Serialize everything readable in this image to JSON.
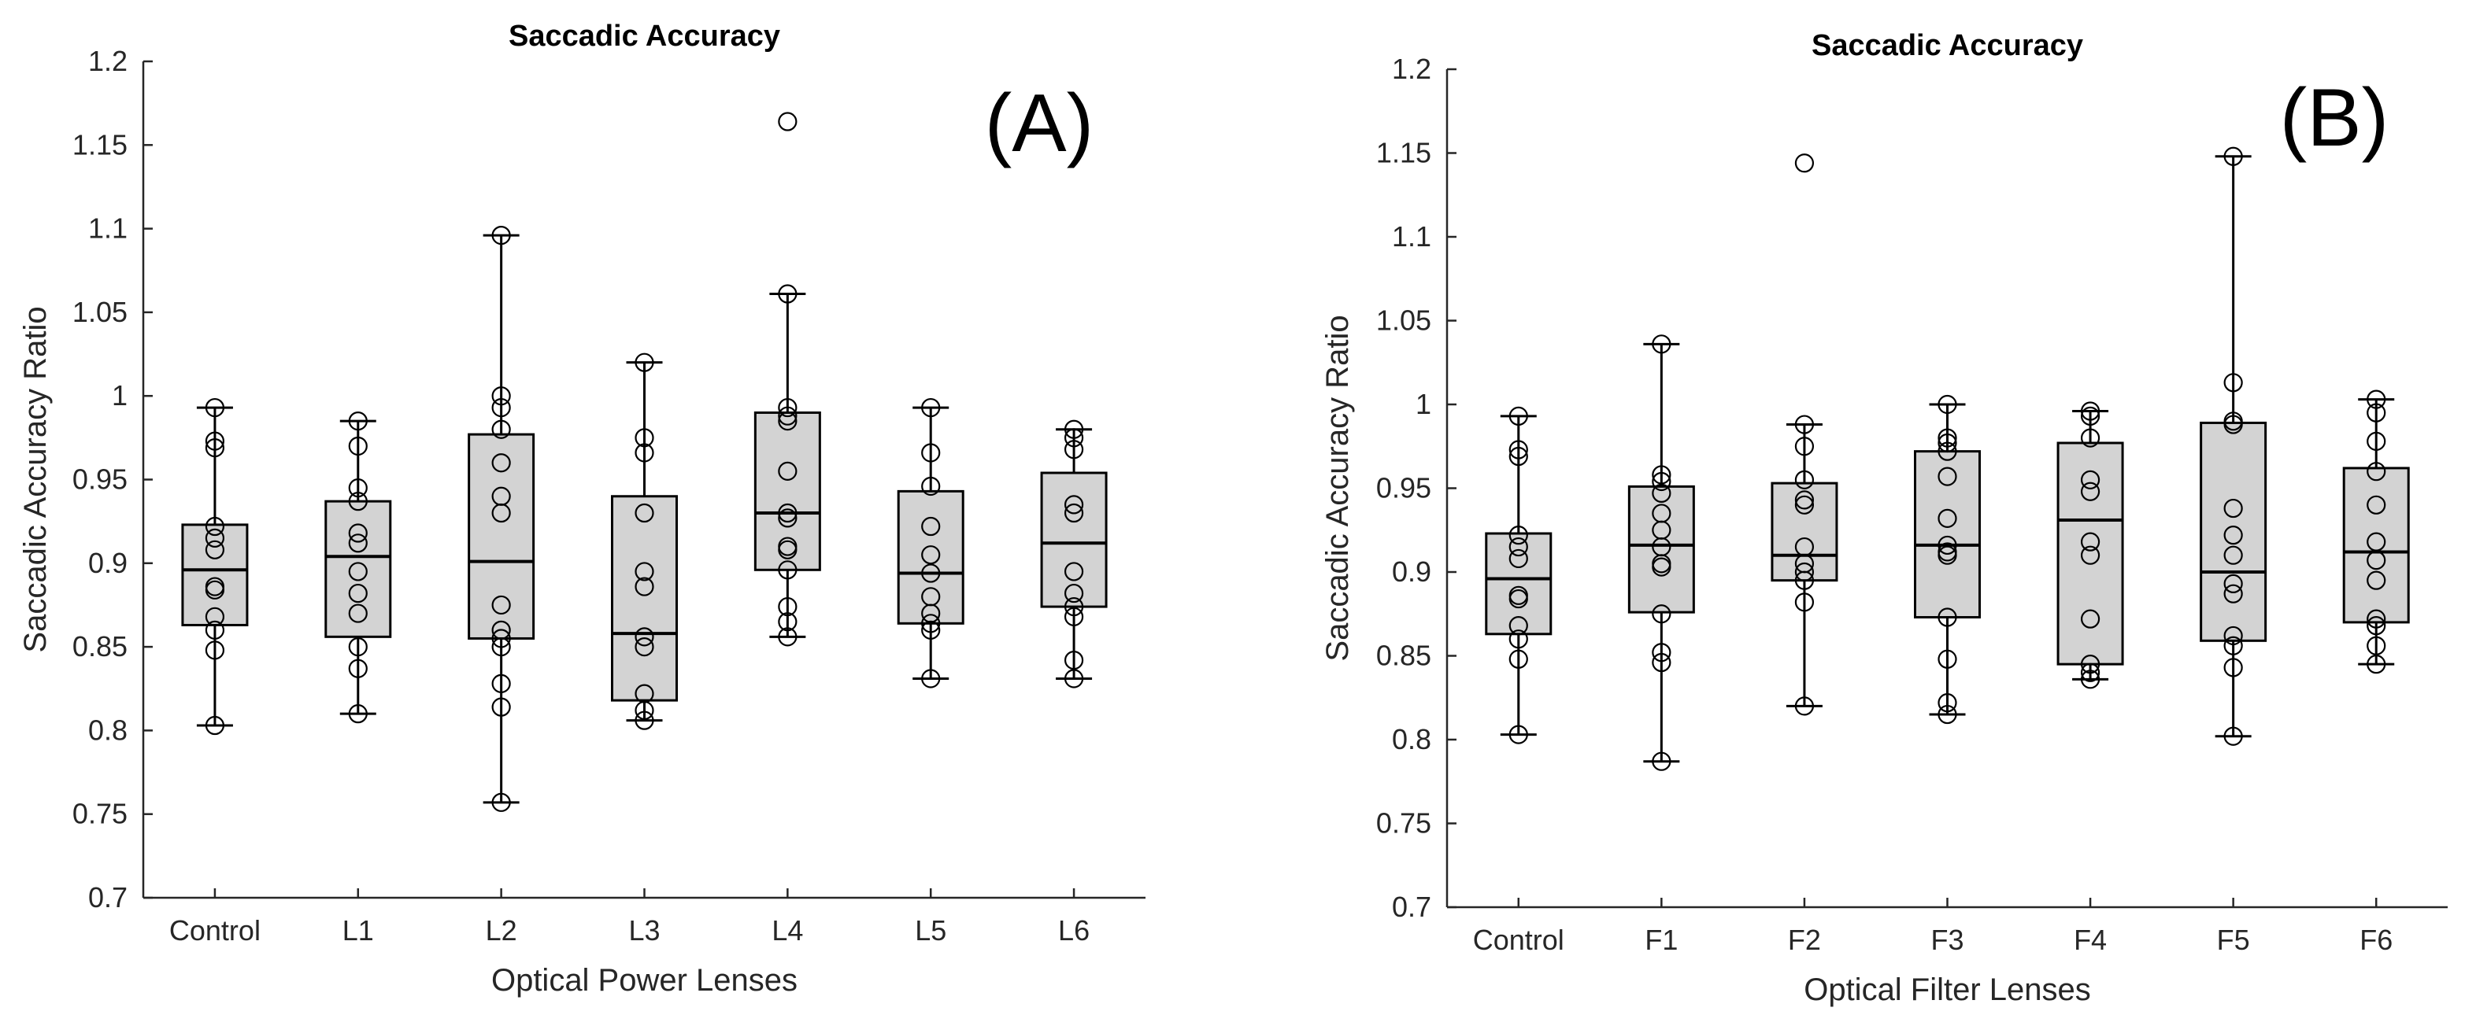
{
  "chart_data": [
    {
      "type": "box",
      "panel_label": "(A)",
      "title": "Saccadic Accuracy",
      "xlabel": "Optical Power Lenses",
      "ylabel": "Saccadic Accuracy Ratio",
      "ylim": [
        0.7,
        1.2
      ],
      "yticks": [
        "0.7",
        "0.75",
        "0.8",
        "0.85",
        "0.9",
        "0.95",
        "1",
        "1.05",
        "1.1",
        "1.15",
        "1.2"
      ],
      "categories": [
        "Control",
        "L1",
        "L2",
        "L3",
        "L4",
        "L5",
        "L6"
      ],
      "boxes": [
        {
          "whisker_low": 0.803,
          "q1": 0.863,
          "median": 0.896,
          "q3": 0.923,
          "whisker_high": 0.993,
          "outliers": []
        },
        {
          "whisker_low": 0.81,
          "q1": 0.856,
          "median": 0.904,
          "q3": 0.937,
          "whisker_high": 0.985,
          "outliers": []
        },
        {
          "whisker_low": 0.757,
          "q1": 0.855,
          "median": 0.901,
          "q3": 0.977,
          "whisker_high": 1.096,
          "outliers": []
        },
        {
          "whisker_low": 0.806,
          "q1": 0.818,
          "median": 0.858,
          "q3": 0.94,
          "whisker_high": 1.02,
          "outliers": []
        },
        {
          "whisker_low": 0.856,
          "q1": 0.896,
          "median": 0.93,
          "q3": 0.99,
          "whisker_high": 1.061,
          "outliers": [
            1.164
          ]
        },
        {
          "whisker_low": 0.831,
          "q1": 0.864,
          "median": 0.894,
          "q3": 0.943,
          "whisker_high": 0.993,
          "outliers": []
        },
        {
          "whisker_low": 0.831,
          "q1": 0.874,
          "median": 0.912,
          "q3": 0.954,
          "whisker_high": 0.98,
          "outliers": []
        }
      ],
      "points": [
        [
          0.993,
          0.973,
          0.969,
          0.922,
          0.915,
          0.908,
          0.886,
          0.884,
          0.868,
          0.86,
          0.848,
          0.803
        ],
        [
          0.985,
          0.97,
          0.945,
          0.937,
          0.918,
          0.912,
          0.895,
          0.882,
          0.87,
          0.85,
          0.837,
          0.81
        ],
        [
          1.096,
          1.0,
          0.993,
          0.98,
          0.96,
          0.94,
          0.93,
          0.875,
          0.86,
          0.855,
          0.85,
          0.828,
          0.814,
          0.757
        ],
        [
          1.02,
          0.975,
          0.966,
          0.93,
          0.895,
          0.886,
          0.856,
          0.85,
          0.822,
          0.812,
          0.806
        ],
        [
          1.164,
          1.061,
          0.993,
          0.988,
          0.985,
          0.955,
          0.93,
          0.927,
          0.91,
          0.908,
          0.896,
          0.874,
          0.865,
          0.856
        ],
        [
          0.993,
          0.966,
          0.946,
          0.922,
          0.905,
          0.894,
          0.88,
          0.87,
          0.864,
          0.86,
          0.831
        ],
        [
          0.98,
          0.975,
          0.968,
          0.935,
          0.93,
          0.895,
          0.882,
          0.874,
          0.868,
          0.842,
          0.831
        ]
      ]
    },
    {
      "type": "box",
      "panel_label": "(B)",
      "title": "Saccadic Accuracy",
      "xlabel": "Optical Filter Lenses",
      "ylabel": "Saccadic Accuracy Ratio",
      "ylim": [
        0.7,
        1.2
      ],
      "yticks": [
        "0.7",
        "0.75",
        "0.8",
        "0.85",
        "0.9",
        "0.95",
        "1",
        "1.05",
        "1.1",
        "1.15",
        "1.2"
      ],
      "categories": [
        "Control",
        "F1",
        "F2",
        "F3",
        "F4",
        "F5",
        "F6"
      ],
      "boxes": [
        {
          "whisker_low": 0.803,
          "q1": 0.863,
          "median": 0.896,
          "q3": 0.923,
          "whisker_high": 0.993,
          "outliers": []
        },
        {
          "whisker_low": 0.787,
          "q1": 0.876,
          "median": 0.916,
          "q3": 0.951,
          "whisker_high": 1.036,
          "outliers": []
        },
        {
          "whisker_low": 0.82,
          "q1": 0.895,
          "median": 0.91,
          "q3": 0.953,
          "whisker_high": 0.988,
          "outliers": [
            1.144
          ]
        },
        {
          "whisker_low": 0.815,
          "q1": 0.873,
          "median": 0.916,
          "q3": 0.972,
          "whisker_high": 1.0,
          "outliers": []
        },
        {
          "whisker_low": 0.836,
          "q1": 0.845,
          "median": 0.931,
          "q3": 0.977,
          "whisker_high": 0.996,
          "outliers": []
        },
        {
          "whisker_low": 0.802,
          "q1": 0.859,
          "median": 0.9,
          "q3": 0.989,
          "whisker_high": 1.148,
          "outliers": []
        },
        {
          "whisker_low": 0.845,
          "q1": 0.87,
          "median": 0.912,
          "q3": 0.962,
          "whisker_high": 1.003,
          "outliers": []
        }
      ],
      "points": [
        [
          0.993,
          0.973,
          0.969,
          0.922,
          0.915,
          0.908,
          0.886,
          0.884,
          0.868,
          0.86,
          0.848,
          0.803
        ],
        [
          1.036,
          0.958,
          0.954,
          0.947,
          0.935,
          0.925,
          0.915,
          0.905,
          0.903,
          0.875,
          0.852,
          0.846,
          0.787
        ],
        [
          1.144,
          0.988,
          0.975,
          0.955,
          0.943,
          0.94,
          0.915,
          0.905,
          0.9,
          0.895,
          0.882,
          0.82
        ],
        [
          1.0,
          0.98,
          0.977,
          0.972,
          0.957,
          0.932,
          0.916,
          0.912,
          0.91,
          0.873,
          0.848,
          0.822,
          0.815
        ],
        [
          0.996,
          0.993,
          0.98,
          0.955,
          0.948,
          0.918,
          0.91,
          0.872,
          0.845,
          0.84,
          0.836
        ],
        [
          1.148,
          1.013,
          0.99,
          0.988,
          0.938,
          0.922,
          0.91,
          0.893,
          0.887,
          0.862,
          0.856,
          0.843,
          0.802
        ],
        [
          1.003,
          0.995,
          0.978,
          0.96,
          0.94,
          0.918,
          0.907,
          0.895,
          0.872,
          0.868,
          0.856,
          0.845
        ]
      ]
    }
  ]
}
